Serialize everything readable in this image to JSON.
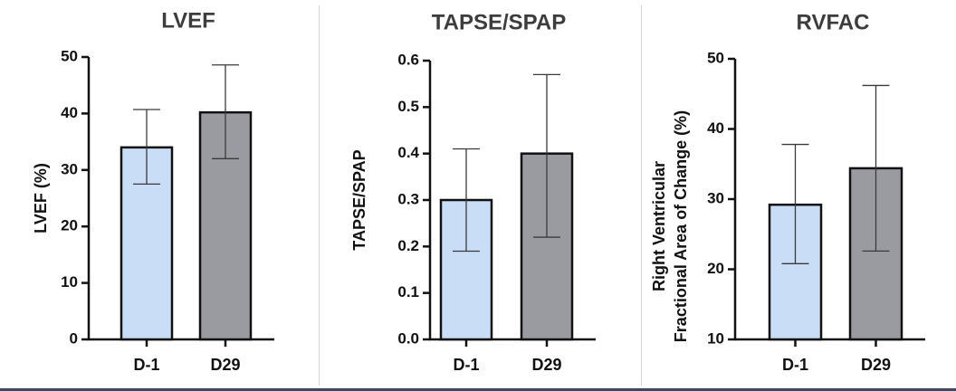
{
  "chart_data": [
    {
      "type": "bar",
      "title": "LVEF",
      "ylabel_lines": [
        "LVEF (%)"
      ],
      "categories": [
        "D-1",
        "D29"
      ],
      "values": [
        34.0,
        40.2
      ],
      "error_low": [
        27.5,
        32.0
      ],
      "error_high": [
        40.7,
        48.6
      ],
      "ylim": [
        0,
        50
      ],
      "yticks": [
        0,
        10,
        20,
        30,
        40,
        50
      ],
      "ytick_labels": [
        "0",
        "10",
        "20",
        "30",
        "40",
        "50"
      ]
    },
    {
      "type": "bar",
      "title": "TAPSE/SPAP",
      "ylabel_lines": [
        "TAPSE/SPAP"
      ],
      "categories": [
        "D-1",
        "D29"
      ],
      "values": [
        0.3,
        0.4
      ],
      "error_low": [
        0.19,
        0.22
      ],
      "error_high": [
        0.41,
        0.57
      ],
      "ylim": [
        0,
        0.6
      ],
      "yticks": [
        0,
        0.1,
        0.2,
        0.3,
        0.4,
        0.5,
        0.6
      ],
      "ytick_labels": [
        "0.0",
        "0.1",
        "0.2",
        "0.3",
        "0.4",
        "0.5",
        "0.6"
      ]
    },
    {
      "type": "bar",
      "title": "RVFAC",
      "ylabel_lines": [
        "Right Ventricular",
        "Fractional Area of Change (%)"
      ],
      "categories": [
        "D-1",
        "D29"
      ],
      "values": [
        29.2,
        34.4
      ],
      "error_low": [
        20.8,
        22.6
      ],
      "error_high": [
        37.8,
        46.2
      ],
      "ylim": [
        10,
        50
      ],
      "yticks": [
        10,
        20,
        30,
        40,
        50
      ],
      "ytick_labels": [
        "10",
        "20",
        "30",
        "40",
        "50"
      ]
    }
  ],
  "colors": {
    "bar_d_minus_1": "#c9ddf6",
    "bar_d29": "#9a9aa1",
    "outline": "#111111",
    "title": "#3d3d3d",
    "background": "#ffffff"
  }
}
